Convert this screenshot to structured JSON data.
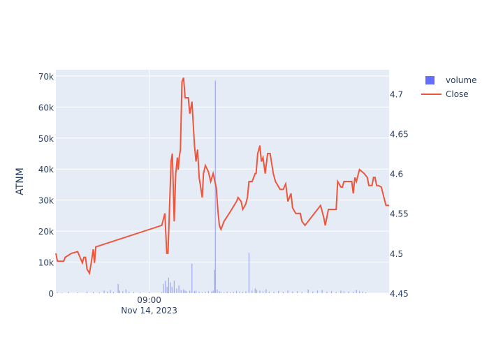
{
  "chart_data": {
    "type": "line",
    "ylabel": "ATNM",
    "xaxis": {
      "tick_labels": [
        {
          "line1": "09:00",
          "line2": "Nov 14, 2023",
          "pos": 0.28
        }
      ]
    },
    "y_left": {
      "range": [
        0,
        72000
      ],
      "ticks": [
        0,
        10000,
        20000,
        30000,
        40000,
        50000,
        60000,
        70000
      ],
      "tick_labels": [
        "0",
        "10k",
        "20k",
        "30k",
        "40k",
        "50k",
        "60k",
        "70k"
      ]
    },
    "y_right": {
      "range": [
        4.45,
        4.73
      ],
      "ticks": [
        4.45,
        4.5,
        4.55,
        4.6,
        4.65,
        4.7
      ],
      "tick_labels": [
        "4.45",
        "4.5",
        "4.55",
        "4.6",
        "4.65",
        "4.7"
      ]
    },
    "legend": {
      "placement": "top-right",
      "items": [
        {
          "name": "volume",
          "color": "#636efa",
          "kind": "bar"
        },
        {
          "name": "Close",
          "color": "#ef553b",
          "kind": "line"
        }
      ]
    },
    "series": [
      {
        "name": "volume",
        "axis": "left",
        "color": "#636efa",
        "points": [
          [
            0.005,
            300
          ],
          [
            0.02,
            200
          ],
          [
            0.04,
            400
          ],
          [
            0.07,
            300
          ],
          [
            0.1,
            500
          ],
          [
            0.12,
            400
          ],
          [
            0.14,
            300
          ],
          [
            0.155,
            800
          ],
          [
            0.165,
            500
          ],
          [
            0.175,
            1000
          ],
          [
            0.185,
            400
          ],
          [
            0.2,
            3000
          ],
          [
            0.205,
            800
          ],
          [
            0.215,
            600
          ],
          [
            0.225,
            1200
          ],
          [
            0.235,
            500
          ],
          [
            0.25,
            400
          ],
          [
            0.27,
            300
          ],
          [
            0.3,
            400
          ],
          [
            0.34,
            300
          ],
          [
            0.36,
            200
          ],
          [
            0.345,
            3000
          ],
          [
            0.352,
            4000
          ],
          [
            0.357,
            2000
          ],
          [
            0.362,
            5000
          ],
          [
            0.368,
            3500
          ],
          [
            0.373,
            2000
          ],
          [
            0.38,
            4000
          ],
          [
            0.388,
            1500
          ],
          [
            0.395,
            2500
          ],
          [
            0.402,
            1000
          ],
          [
            0.41,
            1200
          ],
          [
            0.415,
            800
          ],
          [
            0.42,
            600
          ],
          [
            0.43,
            800
          ],
          [
            0.437,
            9500
          ],
          [
            0.445,
            600
          ],
          [
            0.45,
            800
          ],
          [
            0.46,
            500
          ],
          [
            0.47,
            300
          ],
          [
            0.48,
            400
          ],
          [
            0.49,
            600
          ],
          [
            0.5,
            500
          ],
          [
            0.505,
            800
          ],
          [
            0.51,
            7500
          ],
          [
            0.512,
            68500
          ],
          [
            0.518,
            1200
          ],
          [
            0.525,
            600
          ],
          [
            0.53,
            400
          ],
          [
            0.54,
            300
          ],
          [
            0.55,
            500
          ],
          [
            0.56,
            300
          ],
          [
            0.57,
            400
          ],
          [
            0.58,
            700
          ],
          [
            0.59,
            500
          ],
          [
            0.6,
            400
          ],
          [
            0.61,
            600
          ],
          [
            0.62,
            13000
          ],
          [
            0.63,
            800
          ],
          [
            0.64,
            1500
          ],
          [
            0.645,
            1000
          ],
          [
            0.655,
            800
          ],
          [
            0.665,
            600
          ],
          [
            0.675,
            1200
          ],
          [
            0.685,
            500
          ],
          [
            0.7,
            400
          ],
          [
            0.715,
            700
          ],
          [
            0.73,
            400
          ],
          [
            0.745,
            800
          ],
          [
            0.76,
            500
          ],
          [
            0.775,
            600
          ],
          [
            0.79,
            400
          ],
          [
            0.81,
            1200
          ],
          [
            0.825,
            500
          ],
          [
            0.84,
            800
          ],
          [
            0.855,
            1000
          ],
          [
            0.87,
            500
          ],
          [
            0.885,
            600
          ],
          [
            0.9,
            400
          ],
          [
            0.915,
            800
          ],
          [
            0.925,
            600
          ],
          [
            0.94,
            500
          ],
          [
            0.955,
            400
          ],
          [
            0.965,
            1000
          ],
          [
            0.975,
            600
          ],
          [
            0.985,
            500
          ],
          [
            0.995,
            300
          ]
        ]
      },
      {
        "name": "Close",
        "axis": "right",
        "color": "#ef553b",
        "points": [
          [
            0.0,
            4.5
          ],
          [
            0.005,
            4.49
          ],
          [
            0.025,
            4.49
          ],
          [
            0.03,
            4.495
          ],
          [
            0.05,
            4.5
          ],
          [
            0.07,
            4.502
          ],
          [
            0.085,
            4.488
          ],
          [
            0.09,
            4.495
          ],
          [
            0.095,
            4.495
          ],
          [
            0.1,
            4.48
          ],
          [
            0.108,
            4.475
          ],
          [
            0.115,
            4.492
          ],
          [
            0.12,
            4.505
          ],
          [
            0.124,
            4.488
          ],
          [
            0.128,
            4.508
          ],
          [
            0.34,
            4.535
          ],
          [
            0.35,
            4.55
          ],
          [
            0.356,
            4.5
          ],
          [
            0.36,
            4.5
          ],
          [
            0.37,
            4.615
          ],
          [
            0.374,
            4.625
          ],
          [
            0.38,
            4.54
          ],
          [
            0.385,
            4.6
          ],
          [
            0.39,
            4.62
          ],
          [
            0.393,
            4.605
          ],
          [
            0.396,
            4.62
          ],
          [
            0.4,
            4.63
          ],
          [
            0.405,
            4.715
          ],
          [
            0.41,
            4.72
          ],
          [
            0.415,
            4.695
          ],
          [
            0.425,
            4.695
          ],
          [
            0.43,
            4.675
          ],
          [
            0.437,
            4.69
          ],
          [
            0.445,
            4.635
          ],
          [
            0.45,
            4.615
          ],
          [
            0.455,
            4.63
          ],
          [
            0.46,
            4.595
          ],
          [
            0.47,
            4.57
          ],
          [
            0.474,
            4.6
          ],
          [
            0.48,
            4.61
          ],
          [
            0.49,
            4.602
          ],
          [
            0.497,
            4.59
          ],
          [
            0.505,
            4.6
          ],
          [
            0.515,
            4.582
          ],
          [
            0.52,
            4.555
          ],
          [
            0.525,
            4.535
          ],
          [
            0.53,
            4.53
          ],
          [
            0.54,
            4.54
          ],
          [
            0.56,
            4.552
          ],
          [
            0.58,
            4.565
          ],
          [
            0.585,
            4.57
          ],
          [
            0.595,
            4.565
          ],
          [
            0.6,
            4.555
          ],
          [
            0.61,
            4.562
          ],
          [
            0.615,
            4.57
          ],
          [
            0.62,
            4.59
          ],
          [
            0.63,
            4.59
          ],
          [
            0.64,
            4.6
          ],
          [
            0.643,
            4.6
          ],
          [
            0.648,
            4.625
          ],
          [
            0.655,
            4.635
          ],
          [
            0.66,
            4.615
          ],
          [
            0.665,
            4.62
          ],
          [
            0.672,
            4.6
          ],
          [
            0.68,
            4.625
          ],
          [
            0.688,
            4.625
          ],
          [
            0.698,
            4.6
          ],
          [
            0.705,
            4.59
          ],
          [
            0.72,
            4.58
          ],
          [
            0.73,
            4.58
          ],
          [
            0.738,
            4.587
          ],
          [
            0.745,
            4.565
          ],
          [
            0.755,
            4.575
          ],
          [
            0.76,
            4.557
          ],
          [
            0.77,
            4.55
          ],
          [
            0.785,
            4.55
          ],
          [
            0.79,
            4.54
          ],
          [
            0.8,
            4.535
          ],
          [
            0.85,
            4.56
          ],
          [
            0.86,
            4.545
          ],
          [
            0.865,
            4.535
          ],
          [
            0.875,
            4.555
          ],
          [
            0.9,
            4.555
          ],
          [
            0.905,
            4.59
          ],
          [
            0.915,
            4.583
          ],
          [
            0.92,
            4.583
          ],
          [
            0.925,
            4.59
          ],
          [
            0.945,
            4.59
          ],
          [
            0.95,
            4.59
          ],
          [
            0.955,
            4.575
          ],
          [
            0.96,
            4.595
          ],
          [
            0.965,
            4.59
          ],
          [
            0.975,
            4.605
          ],
          [
            0.99,
            4.6
          ],
          [
            1.0,
            4.595
          ],
          [
            1.005,
            4.585
          ],
          [
            1.015,
            4.585
          ],
          [
            1.02,
            4.595
          ],
          [
            1.025,
            4.595
          ],
          [
            1.03,
            4.585
          ],
          [
            1.035,
            4.585
          ],
          [
            1.045,
            4.583
          ],
          [
            1.05,
            4.575
          ],
          [
            1.06,
            4.56
          ],
          [
            1.07,
            4.56
          ]
        ]
      }
    ]
  }
}
